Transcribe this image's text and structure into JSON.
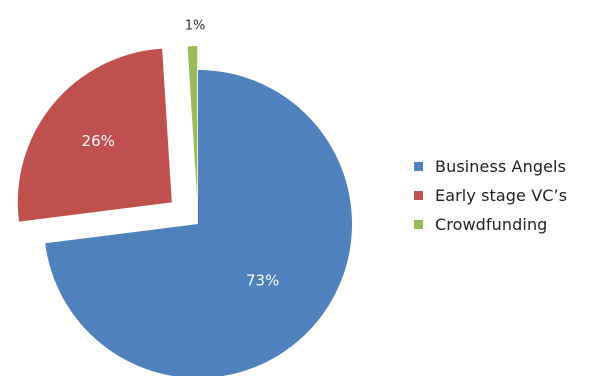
{
  "chart_data": {
    "type": "pie",
    "title": "",
    "slices": [
      {
        "label": "Business Angels",
        "value": 73,
        "display": "73%",
        "color": "#4F81BD"
      },
      {
        "label": "Early stage VC’s",
        "value": 26,
        "display": "26%",
        "color": "#C0504D"
      },
      {
        "label": "Crowdfunding",
        "value": 1,
        "display": "1%",
        "color": "#9BBB59"
      }
    ],
    "legend_position": "right",
    "exploded": true
  }
}
